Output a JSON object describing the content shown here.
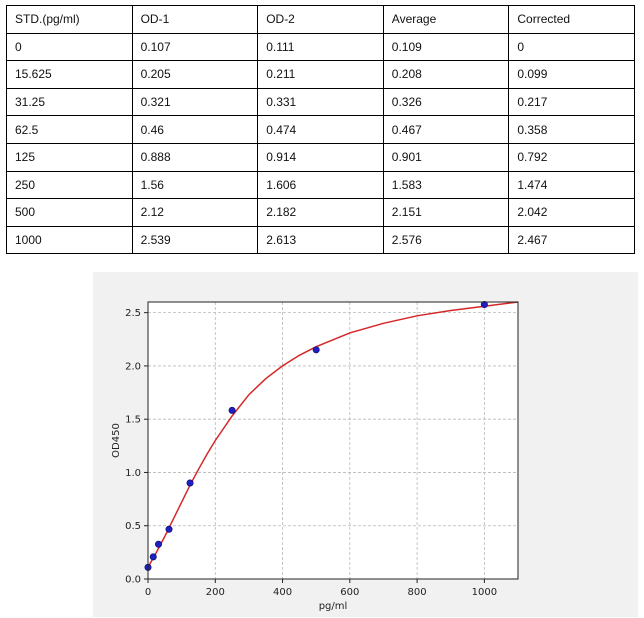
{
  "table": {
    "headers": [
      "STD.(pg/ml)",
      "OD-1",
      "OD-2",
      "Average",
      "Corrected"
    ],
    "rows": [
      [
        "0",
        "0.107",
        "0.111",
        "0.109",
        "0"
      ],
      [
        "15.625",
        "0.205",
        "0.211",
        "0.208",
        "0.099"
      ],
      [
        "31.25",
        "0.321",
        "0.331",
        "0.326",
        "0.217"
      ],
      [
        "62.5",
        "0.46",
        "0.474",
        "0.467",
        "0.358"
      ],
      [
        "125",
        "0.888",
        "0.914",
        "0.901",
        "0.792"
      ],
      [
        "250",
        "1.56",
        "1.606",
        "1.583",
        "1.474"
      ],
      [
        "500",
        "2.12",
        "2.182",
        "2.151",
        "2.042"
      ],
      [
        "1000",
        "2.539",
        "2.613",
        "2.576",
        "2.467"
      ]
    ]
  },
  "chart_data": {
    "type": "scatter",
    "xlabel": "pg/ml",
    "ylabel": "OD450",
    "xlim": [
      0,
      1100
    ],
    "ylim": [
      0,
      2.6
    ],
    "xticks": [
      0,
      200,
      400,
      600,
      800,
      1000
    ],
    "yticks": [
      0.0,
      0.5,
      1.0,
      1.5,
      2.0,
      2.5
    ],
    "xtick_labels": [
      "0",
      "200",
      "400",
      "600",
      "800",
      "1000"
    ],
    "ytick_labels": [
      "0.0",
      "0.5",
      "1.0",
      "1.5",
      "2.0",
      "2.5"
    ],
    "grid": true,
    "series": [
      {
        "type": "scatter",
        "color": "#1f1fbf",
        "x": [
          0,
          15.625,
          31.25,
          62.5,
          125,
          250,
          500,
          1000
        ],
        "y": [
          0.109,
          0.208,
          0.326,
          0.467,
          0.901,
          1.583,
          2.151,
          2.576
        ]
      },
      {
        "type": "line",
        "color": "#d62728",
        "x": [
          0,
          25,
          50,
          75,
          100,
          125,
          150,
          175,
          200,
          250,
          300,
          350,
          400,
          450,
          500,
          600,
          700,
          800,
          900,
          1000,
          1100
        ],
        "y": [
          0.11,
          0.25,
          0.4,
          0.56,
          0.72,
          0.88,
          1.03,
          1.17,
          1.3,
          1.53,
          1.73,
          1.88,
          2.0,
          2.1,
          2.18,
          2.31,
          2.4,
          2.47,
          2.52,
          2.56,
          2.6
        ]
      }
    ]
  }
}
